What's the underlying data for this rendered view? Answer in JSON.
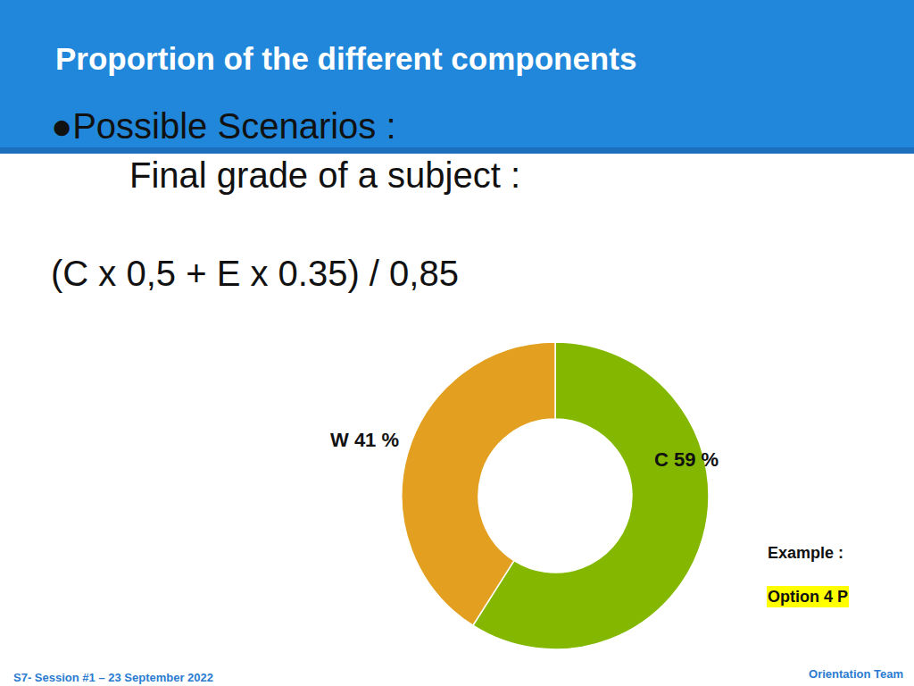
{
  "slide": {
    "title": "Proportion of the different components",
    "bullet": "●Possible Scenarios :",
    "subtitle": "Final grade of a subject :",
    "formula": "(C x 0,5 + E x 0.35) / 0,85",
    "example_label": "Example :",
    "example_value": "Option 4 P",
    "footer_left": "S7- Session #1 – 23 September 2022",
    "footer_right": "Orientation Team"
  },
  "chart_data": {
    "type": "pie",
    "categories": [
      "C",
      "W"
    ],
    "values": [
      59,
      41
    ],
    "value_labels": [
      "C 59 %",
      "W 41 %"
    ],
    "colors": [
      "#84b800",
      "#e3a020"
    ],
    "data_labels": true
  }
}
